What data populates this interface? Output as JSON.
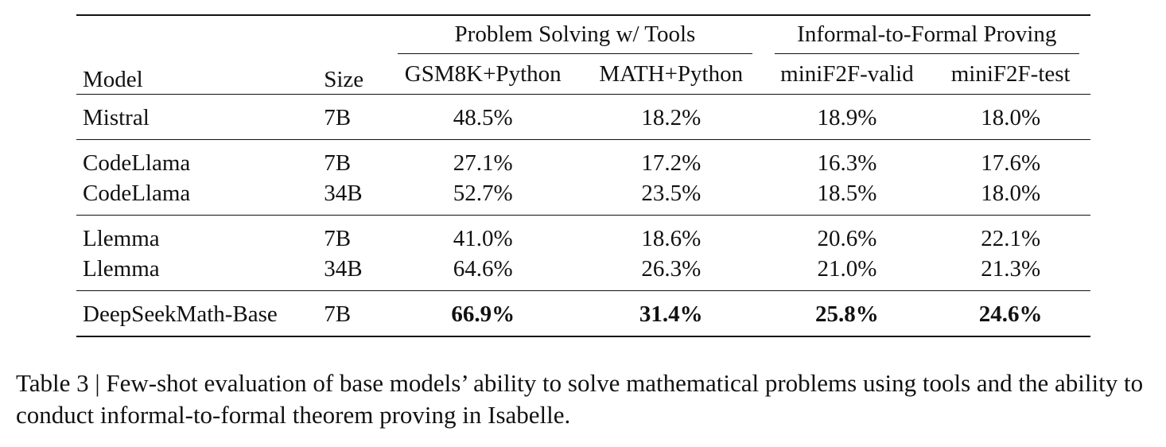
{
  "table": {
    "headers": {
      "model": "Model",
      "size": "Size",
      "group1": "Problem Solving w/ Tools",
      "group2": "Informal-to-Formal Proving",
      "gsm8k": "GSM8K+Python",
      "math": "MATH+Python",
      "minif2f_valid": "miniF2F-valid",
      "minif2f_test": "miniF2F-test"
    },
    "rows": [
      {
        "model": "Mistral",
        "size": "7B",
        "gsm8k": "48.5%",
        "math": "18.2%",
        "minif2f_valid": "18.9%",
        "minif2f_test": "18.0%"
      },
      {
        "model": "CodeLlama",
        "size": "7B",
        "gsm8k": "27.1%",
        "math": "17.2%",
        "minif2f_valid": "16.3%",
        "minif2f_test": "17.6%"
      },
      {
        "model": "CodeLlama",
        "size": "34B",
        "gsm8k": "52.7%",
        "math": "23.5%",
        "minif2f_valid": "18.5%",
        "minif2f_test": "18.0%"
      },
      {
        "model": "Llemma",
        "size": "7B",
        "gsm8k": "41.0%",
        "math": "18.6%",
        "minif2f_valid": "20.6%",
        "minif2f_test": "22.1%"
      },
      {
        "model": "Llemma",
        "size": "34B",
        "gsm8k": "64.6%",
        "math": "26.3%",
        "minif2f_valid": "21.0%",
        "minif2f_test": "21.3%"
      },
      {
        "model": "DeepSeekMath-Base",
        "size": "7B",
        "gsm8k": "66.9%",
        "math": "31.4%",
        "minif2f_valid": "25.8%",
        "minif2f_test": "24.6%"
      }
    ]
  },
  "caption": "Table 3 | Few-shot evaluation of base models’ ability to solve mathematical problems using tools and the ability to conduct informal-to-formal theorem proving in Isabelle."
}
